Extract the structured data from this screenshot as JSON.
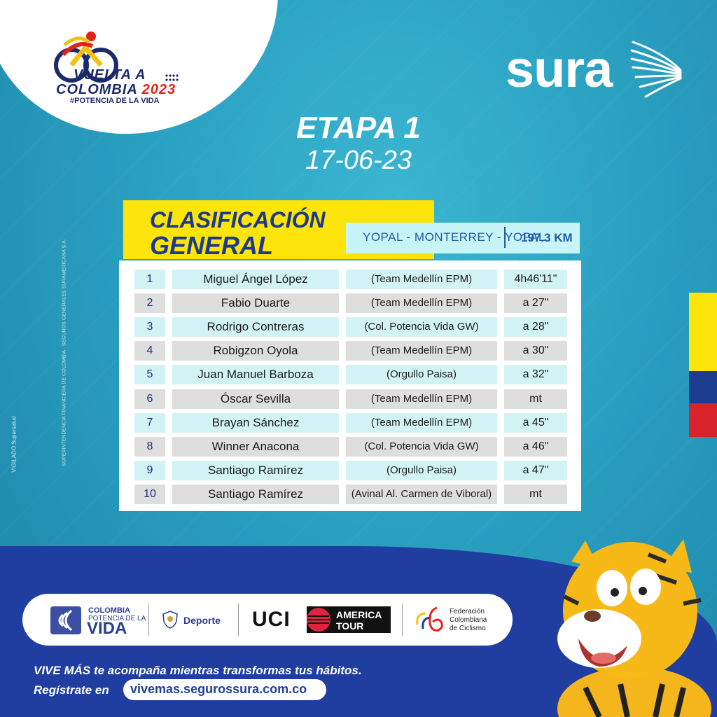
{
  "brand": {
    "event_line1": "VUELTA A",
    "event_line2": "COLOMBIA",
    "event_year": "2023",
    "event_hashtag": "#POTENCIA DE LA VIDA",
    "sponsor": "sura"
  },
  "stage": {
    "title": "ETAPA 1",
    "date": "17-06-23"
  },
  "classification": {
    "title_line1": "CLASIFICACIÓN",
    "title_line2": "GENERAL",
    "route": "YOPAL - MONTERREY - YOPAL",
    "distance": "197.3 KM"
  },
  "standings": [
    {
      "pos": "1",
      "name": "Miguel Ángel López",
      "team": "(Team Medellín EPM)",
      "time": "4h46'11\""
    },
    {
      "pos": "2",
      "name": "Fabio Duarte",
      "team": "(Team Medellín EPM)",
      "time": "a 27\""
    },
    {
      "pos": "3",
      "name": "Rodrigo Contreras",
      "team": "(Col. Potencia Vida GW)",
      "time": "a 28\""
    },
    {
      "pos": "4",
      "name": "Robigzon Oyola",
      "team": "(Team Medellín EPM)",
      "time": "a 30\""
    },
    {
      "pos": "5",
      "name": "Juan Manuel Barboza",
      "team": "(Orgullo Paisa)",
      "time": "a 32\""
    },
    {
      "pos": "6",
      "name": "Óscar Sevilla",
      "team": "(Team Medellín EPM)",
      "time": "mt"
    },
    {
      "pos": "7",
      "name": "Brayan Sánchez",
      "team": "(Team Medellín EPM)",
      "time": "a 45\""
    },
    {
      "pos": "8",
      "name": "Winner Anacona",
      "team": "(Col. Potencia Vida GW)",
      "time": "a 46\""
    },
    {
      "pos": "9",
      "name": "Santiago Ramírez",
      "team": "(Orgullo Paisa)",
      "time": "a 47\""
    },
    {
      "pos": "10",
      "name": "Santiago Ramírez",
      "team": "(Avinal Al. Carmen de Viboral)",
      "time": "mt"
    }
  ],
  "side_text": {
    "legal": "SUPERINTENDENCIA FINANCIERA DE COLOMBIA · SEGUROS GENERALES SURAMERICANA S.A.",
    "vigilado": "VIGILADO Supersalud"
  },
  "sponsors": {
    "colombia_line1": "COLOMBIA",
    "colombia_line2": "POTENCIA DE LA",
    "colombia_line3": "VIDA",
    "deporte": "Deporte",
    "uci": "UCI",
    "america_tour_line1": "AMERICA",
    "america_tour_line2": "TOUR",
    "fcc_line1": "Federación",
    "fcc_line2": "Colombiana",
    "fcc_line3": "de Ciclismo"
  },
  "tagline": {
    "line1": "VIVE MÁS te acompaña mientras transformas tus hábitos.",
    "line2": "Regístrate en",
    "url": "vivemas.segurossura.com.co"
  },
  "colors": {
    "background": "#2aa0c1",
    "yellow": "#fde40a",
    "navy": "#1b3a8e",
    "route_bg": "#c7f4f6",
    "row_cyan": "#d2f3f6",
    "row_grey": "#dedede",
    "flag_blue": "#1d3c8f",
    "flag_red": "#d8232a"
  },
  "icons": [
    "cyclist-icon",
    "sura-wing-icon",
    "colombia-flag-icon",
    "shield-icon",
    "fcc-logo-icon",
    "tiger-mascot"
  ]
}
